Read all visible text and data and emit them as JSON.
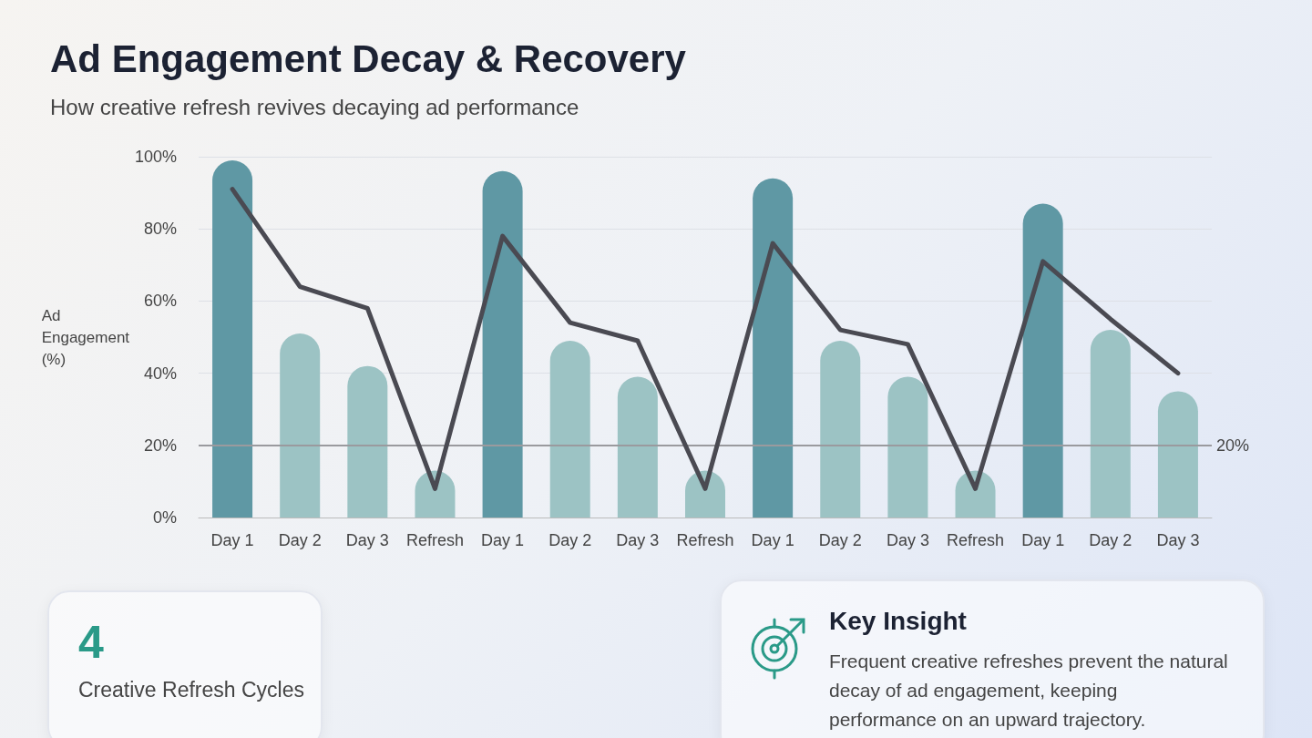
{
  "chart_data": {
    "type": "bar",
    "title": "Ad Engagement Decay & Recovery",
    "subtitle": "How creative refresh revives decaying ad performance",
    "ylabel": "Ad Engagement (%)",
    "categories": [
      "Day 1",
      "Day 2",
      "Day 3",
      "Refresh",
      "Day 1",
      "Day 2",
      "Day 3",
      "Refresh",
      "Day 1",
      "Day 2",
      "Day 3",
      "Refresh",
      "Day 1",
      "Day 2",
      "Day 3"
    ],
    "series": [
      {
        "colors": [
          "#5f98a4",
          "#9cc3c4",
          "#9cc3c4",
          "#9cc3c4",
          "#5f98a4",
          "#9cc3c4",
          "#9cc3c4",
          "#9cc3c4",
          "#5f98a4",
          "#9cc3c4",
          "#9cc3c4",
          "#9cc3c4",
          "#5f98a4",
          "#9cc3c4",
          "#9cc3c4"
        ],
        "values": [
          99,
          51,
          42,
          13,
          96,
          49,
          39,
          13,
          94,
          49,
          39,
          13,
          87,
          52,
          35
        ]
      },
      {
        "type": "line",
        "color": "#4a4a52",
        "values": [
          91,
          64,
          58,
          8,
          78,
          54,
          49,
          8,
          76,
          52,
          48,
          8,
          71,
          55,
          40
        ]
      }
    ],
    "ylim": [
      0,
      100
    ],
    "yticks": [
      {
        "value": 0,
        "label": "0%"
      },
      {
        "value": 20,
        "label": "20%"
      },
      {
        "value": 40,
        "label": "40%"
      },
      {
        "value": 60,
        "label": "60%"
      },
      {
        "value": 80,
        "label": "80%"
      },
      {
        "value": 100,
        "label": "100%"
      }
    ],
    "grid": "y",
    "marker": "none",
    "line_style": "solid",
    "ref_lines": [
      {
        "axis": "y",
        "value": 20,
        "label": "20%",
        "color": "#9a9a9e"
      }
    ],
    "annotations": [
      "4",
      "Creative Refresh Cycles",
      "Key Insight",
      "Frequent creative refreshes prevent the natural decay of ad engagement, keeping performance on an upward trajectory."
    ]
  }
}
